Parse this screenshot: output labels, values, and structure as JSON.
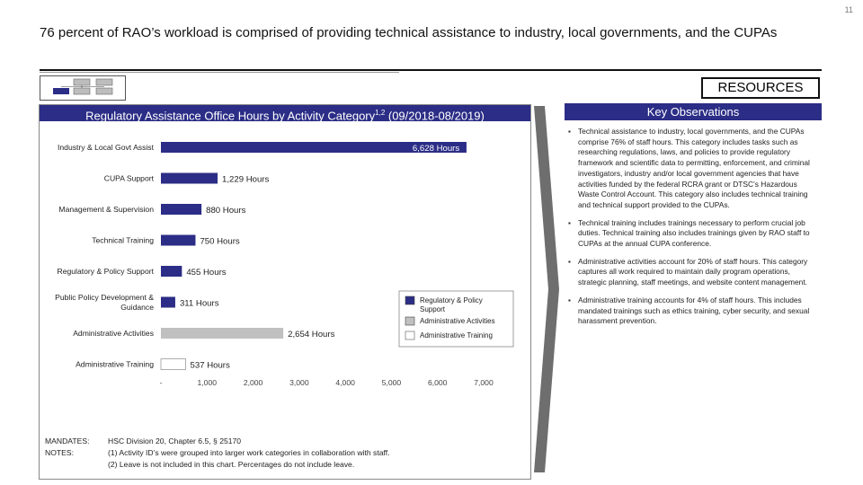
{
  "page_number": "11",
  "title": "76 percent of RAO’s workload is comprised of providing technical assistance to industry, local governments, and the CUPAs",
  "resources_label": "RESOURCES",
  "chart_header": {
    "text": "Regulatory Assistance Office Hours by Activity Category",
    "superscript": "1,2",
    "period": " (09/2018-08/2019)"
  },
  "chart_data": {
    "type": "bar",
    "orientation": "horizontal",
    "categories": [
      "Industry & Local Govt Assist",
      "CUPA Support",
      "Management & Supervision",
      "Technical Training",
      "Regulatory & Policy Support",
      "Public Policy Development & Guidance",
      "Administrative Activities",
      "Administrative Training"
    ],
    "values": [
      6628,
      1229,
      880,
      750,
      455,
      311,
      2654,
      537
    ],
    "value_labels": [
      "6,628 Hours",
      "1,229 Hours",
      "880 Hours",
      "750 Hours",
      "455 Hours",
      "311 Hours",
      "2,654 Hours",
      "537 Hours"
    ],
    "groups": [
      "Regulatory & Policy Support",
      "Regulatory & Policy Support",
      "Regulatory & Policy Support",
      "Regulatory & Policy Support",
      "Regulatory & Policy Support",
      "Regulatory & Policy Support",
      "Administrative Activities",
      "Administrative Training"
    ],
    "xlim": [
      0,
      7000
    ],
    "x_ticks": [
      0,
      1000,
      2000,
      3000,
      4000,
      5000,
      6000,
      7000
    ],
    "x_tick_labels": [
      "-",
      "1,000",
      "2,000",
      "3,000",
      "4,000",
      "5,000",
      "6,000",
      "7,000"
    ],
    "legend": {
      "placement": "bottom-right",
      "entries": [
        {
          "name": "Regulatory & Policy Support",
          "color": "#2b2d86"
        },
        {
          "name": "Administrative Activities",
          "color": "#c0c0c0"
        },
        {
          "name": "Administrative Training",
          "color": "#ffffff"
        }
      ]
    }
  },
  "observations": {
    "header": "Key Observations",
    "items": [
      "Technical assistance to industry, local governments, and the CUPAs comprise 76% of staff hours. This category includes tasks such as researching regulations, laws, and policies to provide regulatory framework and scientific data to permitting, enforcement, and criminal investigators, industry and/or local government agencies that have activities funded by the federal RCRA grant or DTSC’s Hazardous Waste Control Account. This category also includes technical training and technical support provided to the CUPAs.",
      "Technical training includes trainings necessary to perform crucial job duties. Technical training also includes trainings given by RAO staff to CUPAs at the annual CUPA conference.",
      "Administrative activities account for 20% of staff hours. This category captures all work required to maintain daily program operations, strategic planning, staff meetings, and website content management.",
      "Administrative training accounts for 4% of staff hours. This includes mandated trainings such as ethics training, cyber security, and sexual harassment prevention."
    ]
  },
  "notes": {
    "mandates_label": "MANDATES:",
    "mandates_text": "HSC Division 20, Chapter 6.5, § 25170",
    "notes_label": "NOTES:",
    "note_1": "(1) Activity ID’s were grouped into larger work categories in collaboration with staff.",
    "note_2": "(2) Leave is not included in this chart. Percentages do not include leave."
  },
  "colors": {
    "header_navy": "#2b2d86",
    "bar_navy": "#2b2d86",
    "bar_gray": "#c0c0c0",
    "bar_white": "#ffffff"
  }
}
